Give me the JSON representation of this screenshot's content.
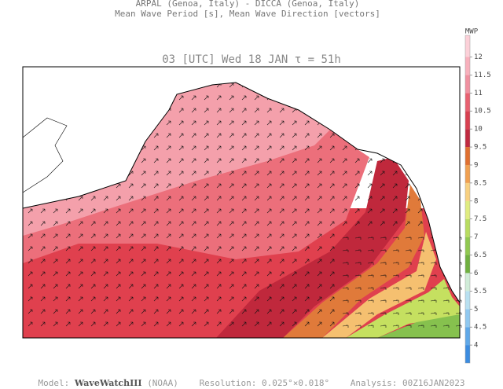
{
  "header": {
    "line1": "ARPAL (Genoa, Italy)  -  DICCA (Genoa, Italy)",
    "line2": "Mean Wave Period [s], Mean Wave Direction [vectors]",
    "map_title": "03 [UTC] Wed 18 JAN  τ = 51h"
  },
  "colorbar": {
    "label": "MWP",
    "range": [
      3.5,
      12.6
    ],
    "ticks": [
      4,
      4.5,
      5,
      5.5,
      6,
      6.5,
      7,
      7.5,
      8,
      8.5,
      9,
      9.5,
      10,
      10.5,
      11,
      11.5,
      12
    ],
    "colors": [
      "#3c8ce0",
      "#60a8e8",
      "#90c8f0",
      "#b8e0f0",
      "#d0ecd8",
      "#70b040",
      "#90c850",
      "#b8dc60",
      "#e0ec80",
      "#f8d080",
      "#f0a050",
      "#e07030",
      "#c02a40",
      "#d84050",
      "#e86070",
      "#f090a0",
      "#f8b0bc",
      "#fcd0d8"
    ]
  },
  "footer": {
    "model_label": "Model:",
    "model": "WaveWatchIII",
    "model_org": "(NOAA)",
    "resolution": "Resolution: 0.025°×0.018°",
    "analysis": "Analysis: 00Z16JAN2023"
  }
}
